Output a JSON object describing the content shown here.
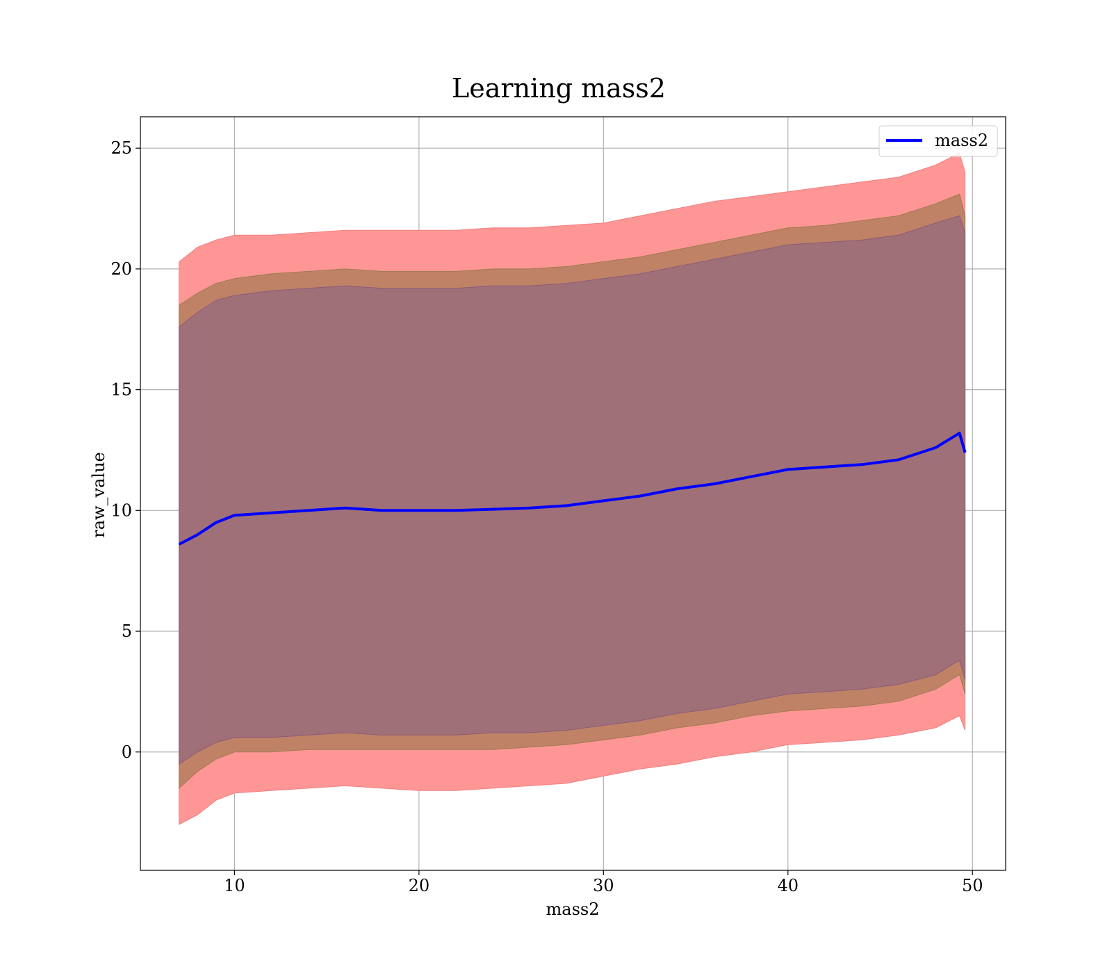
{
  "chart_data": {
    "type": "line",
    "title": "Learning mass2",
    "xlabel": "mass2",
    "ylabel": "raw_value",
    "xlim": [
      4.9,
      51.8
    ],
    "ylim": [
      -4.9,
      26.3
    ],
    "xticks": [
      10,
      20,
      30,
      40,
      50
    ],
    "yticks": [
      0,
      5,
      10,
      15,
      20,
      25
    ],
    "grid": true,
    "legend": {
      "placement": "top-right",
      "entries": [
        "mass2"
      ]
    },
    "colors": {
      "line": "#0000ff",
      "band_outer": "#ff9696",
      "band_middle": "#c08266",
      "band_inner": "#a07078",
      "grid": "#b0b0b0"
    },
    "series": [
      {
        "name": "mass2",
        "x": [
          7.0,
          8.0,
          9.0,
          10.0,
          12.0,
          14.0,
          16.0,
          18.0,
          20.0,
          22.0,
          24.0,
          26.0,
          28.0,
          30.0,
          32.0,
          34.0,
          36.0,
          38.0,
          40.0,
          42.0,
          44.0,
          46.0,
          48.0,
          49.3,
          49.6
        ],
        "y": [
          8.6,
          9.0,
          9.5,
          9.8,
          9.9,
          10.0,
          10.1,
          10.0,
          10.0,
          10.0,
          10.05,
          10.1,
          10.2,
          10.4,
          10.6,
          10.9,
          11.1,
          11.4,
          11.7,
          11.8,
          11.9,
          12.1,
          12.6,
          13.2,
          12.4
        ]
      }
    ],
    "bands": [
      {
        "level": "outer",
        "x": [
          7.0,
          8.0,
          9.0,
          10.0,
          12.0,
          14.0,
          16.0,
          18.0,
          20.0,
          22.0,
          24.0,
          26.0,
          28.0,
          30.0,
          32.0,
          34.0,
          36.0,
          38.0,
          40.0,
          42.0,
          44.0,
          46.0,
          48.0,
          49.3,
          49.6
        ],
        "upper": [
          20.3,
          20.9,
          21.2,
          21.4,
          21.4,
          21.5,
          21.6,
          21.6,
          21.6,
          21.6,
          21.7,
          21.7,
          21.8,
          21.9,
          22.2,
          22.5,
          22.8,
          23.0,
          23.2,
          23.4,
          23.6,
          23.8,
          24.3,
          24.8,
          24.0
        ],
        "lower": [
          -3.0,
          -2.6,
          -2.0,
          -1.7,
          -1.6,
          -1.5,
          -1.4,
          -1.5,
          -1.6,
          -1.6,
          -1.5,
          -1.4,
          -1.3,
          -1.0,
          -0.7,
          -0.5,
          -0.2,
          0.0,
          0.3,
          0.4,
          0.5,
          0.7,
          1.0,
          1.5,
          0.9
        ]
      },
      {
        "level": "middle",
        "x": [
          7.0,
          8.0,
          9.0,
          10.0,
          12.0,
          14.0,
          16.0,
          18.0,
          20.0,
          22.0,
          24.0,
          26.0,
          28.0,
          30.0,
          32.0,
          34.0,
          36.0,
          38.0,
          40.0,
          42.0,
          44.0,
          46.0,
          48.0,
          49.3,
          49.6
        ],
        "upper": [
          18.5,
          19.0,
          19.4,
          19.6,
          19.8,
          19.9,
          20.0,
          19.9,
          19.9,
          19.9,
          20.0,
          20.0,
          20.1,
          20.3,
          20.5,
          20.8,
          21.1,
          21.4,
          21.7,
          21.8,
          22.0,
          22.2,
          22.7,
          23.1,
          22.2
        ],
        "lower": [
          -1.5,
          -0.8,
          -0.3,
          0.0,
          0.0,
          0.1,
          0.1,
          0.1,
          0.1,
          0.1,
          0.1,
          0.2,
          0.3,
          0.5,
          0.7,
          1.0,
          1.2,
          1.5,
          1.7,
          1.8,
          1.9,
          2.1,
          2.6,
          3.2,
          2.4
        ]
      },
      {
        "level": "inner",
        "x": [
          7.0,
          8.0,
          9.0,
          10.0,
          12.0,
          14.0,
          16.0,
          18.0,
          20.0,
          22.0,
          24.0,
          26.0,
          28.0,
          30.0,
          32.0,
          34.0,
          36.0,
          38.0,
          40.0,
          42.0,
          44.0,
          46.0,
          48.0,
          49.3,
          49.6
        ],
        "upper": [
          17.6,
          18.2,
          18.7,
          18.9,
          19.1,
          19.2,
          19.3,
          19.2,
          19.2,
          19.2,
          19.3,
          19.3,
          19.4,
          19.6,
          19.8,
          20.1,
          20.4,
          20.7,
          21.0,
          21.1,
          21.2,
          21.4,
          21.9,
          22.2,
          21.5
        ],
        "lower": [
          -0.5,
          0.0,
          0.4,
          0.6,
          0.6,
          0.7,
          0.8,
          0.7,
          0.7,
          0.7,
          0.8,
          0.8,
          0.9,
          1.1,
          1.3,
          1.6,
          1.8,
          2.1,
          2.4,
          2.5,
          2.6,
          2.8,
          3.2,
          3.8,
          3.0
        ]
      }
    ]
  }
}
